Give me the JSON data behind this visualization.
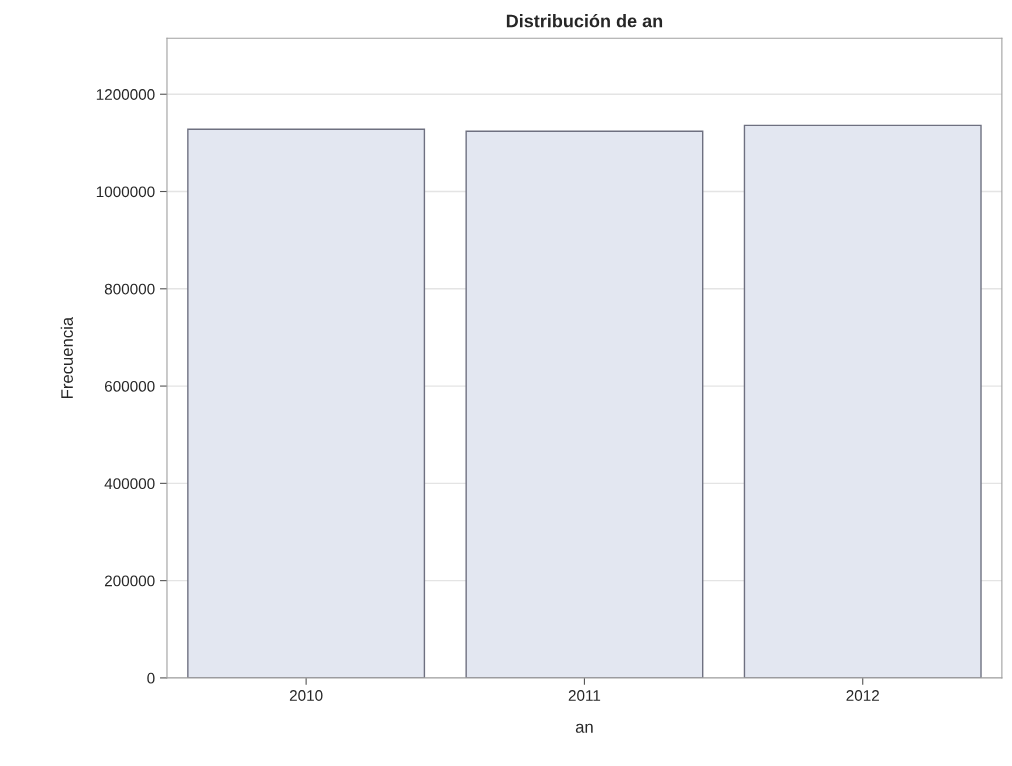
{
  "chart_data": {
    "type": "bar",
    "title": "Distribución de an",
    "xlabel": "an",
    "ylabel": "Frecuencia",
    "categories": [
      "2010",
      "2011",
      "2012"
    ],
    "series": [
      {
        "color": "#e3e7f1",
        "values": [
          1128000,
          1124000,
          1136000
        ]
      }
    ],
    "ylim": [
      0,
      1315000
    ],
    "yticks": [
      0,
      200000,
      400000,
      600000,
      800000,
      1000000,
      1200000
    ],
    "grid": "y"
  }
}
